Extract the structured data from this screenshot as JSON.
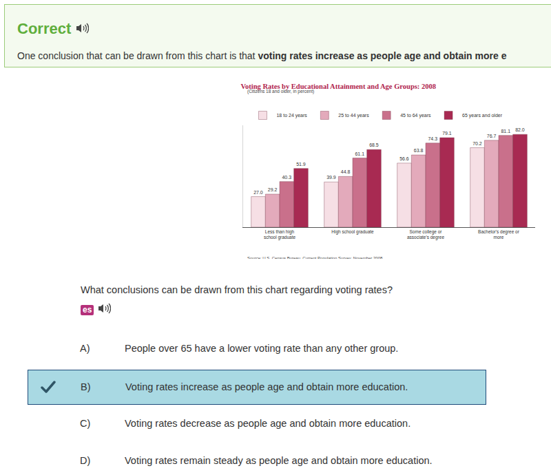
{
  "feedback": {
    "heading": "Correct",
    "text": "One conclusion that can be drawn from this chart is that ",
    "bold_text": "voting rates increase as people age and obtain more e"
  },
  "chart_data": {
    "type": "bar",
    "title": "Voting Rates by Educational Attainment and Age Groups: 2008",
    "subtitle": "(Citizens 18 and older, in percent)",
    "source": "Source: U.S. Census Bureau, Current Population Survey, November 2008.",
    "categories": [
      "Less than high school graduate",
      "High school graduate",
      "Some college or associate's degree",
      "Bachelor's degree or more"
    ],
    "series": [
      {
        "name": "18 to 24 years",
        "color": "#f6dfe5",
        "values": [
          27.0,
          39.9,
          56.6,
          70.2
        ],
        "value_labels": [
          "27.0",
          "39.9",
          "56.6",
          "70.2"
        ]
      },
      {
        "name": "25 to 44 years",
        "color": "#e3aabb",
        "values": [
          29.2,
          44.8,
          63.8,
          76.7
        ],
        "value_labels": [
          "29.2",
          "44.8",
          "63.8",
          "76.7"
        ]
      },
      {
        "name": "45 to 64 years",
        "color": "#c9708b",
        "values": [
          40.3,
          61.1,
          74.3,
          81.1
        ],
        "value_labels": [
          "40.3",
          "61.1",
          "74.3",
          "81.1"
        ]
      },
      {
        "name": "65 years and older",
        "color": "#a82a52",
        "values": [
          51.9,
          68.5,
          79.1,
          82.0
        ],
        "value_labels": [
          "51.9",
          "68.5",
          "79.1",
          "82.0"
        ]
      }
    ],
    "ylim": [
      0,
      90
    ],
    "grid": false,
    "legend": "top",
    "data_labels": true,
    "tick_labels": "x"
  },
  "question": "What conclusions can be drawn from this chart regarding voting rates?",
  "language_button": "es",
  "options": [
    {
      "letter": "A)",
      "text": "People over 65 have a lower voting rate than any other group.",
      "selected": false
    },
    {
      "letter": "B)",
      "text": "Voting rates increase as people age and obtain more education.",
      "selected": true
    },
    {
      "letter": "C)",
      "text": "Voting rates decrease as people age and obtain more education.",
      "selected": false
    },
    {
      "letter": "D)",
      "text": "Voting rates remain steady as people age and obtain more education.",
      "selected": false
    }
  ]
}
